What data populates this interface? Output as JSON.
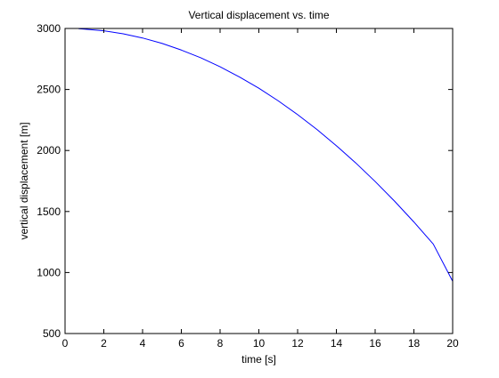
{
  "chart_data": {
    "type": "line",
    "title": "Vertical displacement vs. time",
    "xlabel": "time [s]",
    "ylabel": "vertical displacement [m]",
    "xlim": [
      0,
      20
    ],
    "ylim": [
      500,
      3000
    ],
    "xticks": [
      0,
      2,
      4,
      6,
      8,
      10,
      12,
      14,
      16,
      18,
      20
    ],
    "yticks": [
      500,
      1000,
      1500,
      2000,
      2500,
      3000
    ],
    "grid": false,
    "legend": "none",
    "series": [
      {
        "color": "#0000ff",
        "x": [
          0.7,
          1,
          2,
          3,
          4,
          5,
          6,
          7,
          8,
          9,
          10,
          11,
          12,
          13,
          14,
          15,
          16,
          17,
          18,
          19,
          20
        ],
        "y": [
          2998,
          2995,
          2981,
          2956,
          2922,
          2878,
          2823,
          2760,
          2686,
          2602,
          2510,
          2407,
          2294,
          2172,
          2039,
          1898,
          1746,
          1585,
          1414,
          1233,
          928
        ]
      }
    ]
  }
}
